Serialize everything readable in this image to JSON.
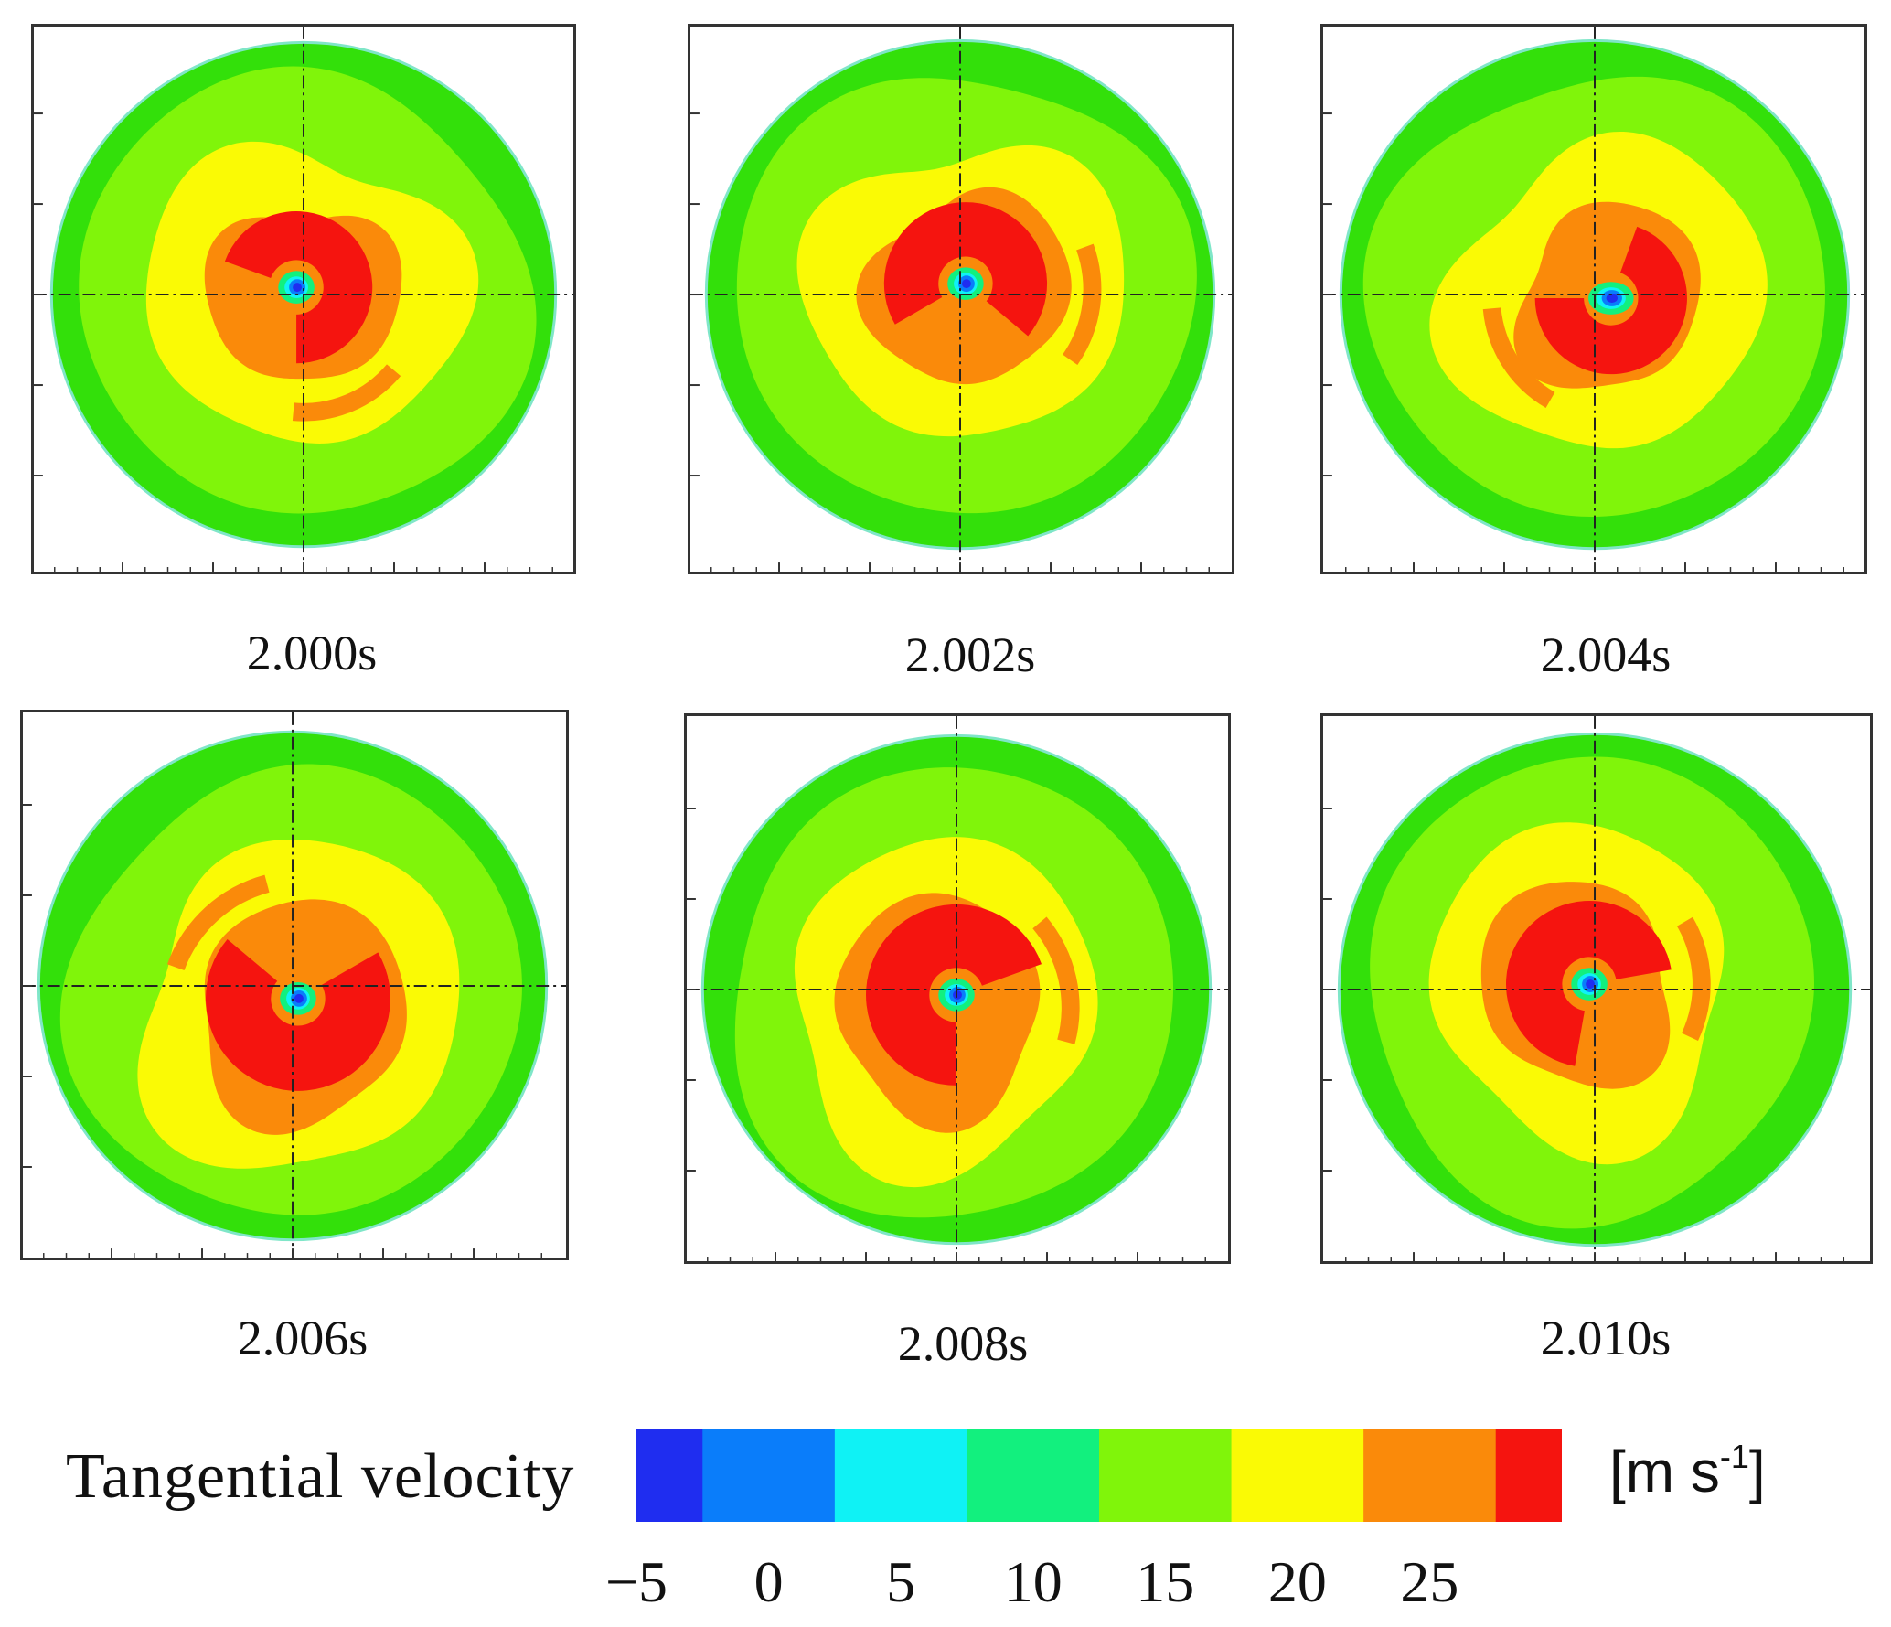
{
  "chart_data": {
    "type": "heatmap",
    "description_quantity": "Tangential velocity",
    "unit": "[m s-1]",
    "unit_base": "m s",
    "unit_exponent": "-1",
    "panels": [
      {
        "time_label": "2.000s"
      },
      {
        "time_label": "2.002s"
      },
      {
        "time_label": "2.004s"
      },
      {
        "time_label": "2.006s"
      },
      {
        "time_label": "2.008s"
      },
      {
        "time_label": "2.010s"
      }
    ],
    "colorbar": {
      "title": "Tangential velocity",
      "ticks": [
        "−5",
        "0",
        "5",
        "10",
        "15",
        "20",
        "25"
      ],
      "tick_values": [
        -5,
        0,
        5,
        10,
        15,
        20,
        25
      ],
      "range": [
        -5,
        30
      ],
      "bands": [
        {
          "from": -5,
          "to": -2.5,
          "color": "#1f2df0"
        },
        {
          "from": -2.5,
          "to": 2.5,
          "color": "#0a7dfa"
        },
        {
          "from": 2.5,
          "to": 7.5,
          "color": "#0ff2f5"
        },
        {
          "from": 7.5,
          "to": 12.5,
          "color": "#12f07e"
        },
        {
          "from": 12.5,
          "to": 17.5,
          "color": "#80f50a"
        },
        {
          "from": 17.5,
          "to": 22.5,
          "color": "#fafa05"
        },
        {
          "from": 22.5,
          "to": 27.5,
          "color": "#fa8a0a"
        },
        {
          "from": 27.5,
          "to": 30,
          "color": "#f5140f"
        }
      ]
    }
  }
}
